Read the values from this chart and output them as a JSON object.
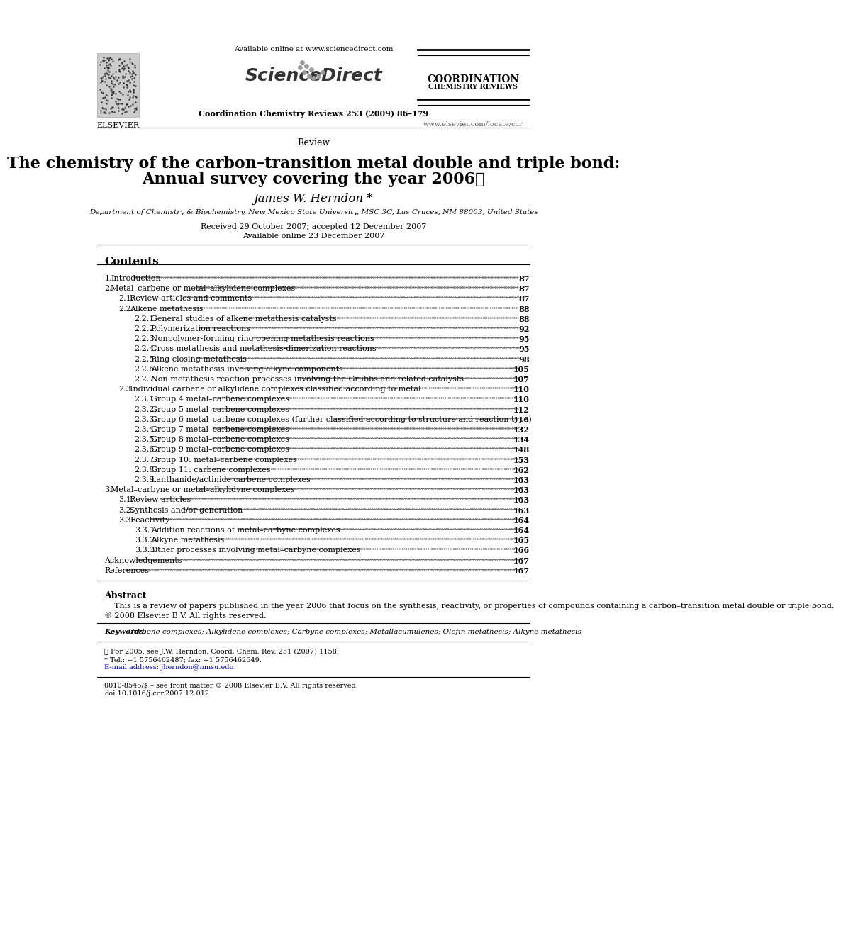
{
  "bg_color": "#ffffff",
  "header": {
    "available_online": "Available online at www.sciencedirect.com",
    "journal_ref": "Coordination Chemistry Reviews 253 (2009) 86–179",
    "coord_chem_line1": "COORDINATION",
    "coord_chem_line2": "CHEMISTRY REVIEWS",
    "elsevier_label": "ELSEVIER",
    "website": "www.elsevier.com/locate/ccr"
  },
  "section_label": "Review",
  "title_line1": "The chemistry of the carbon–transition metal double and triple bond:",
  "title_line2": "Annual survey covering the year 2006★",
  "author": "James W. Herndon *",
  "affiliation": "Department of Chemistry & Biochemistry, New Mexico State University, MSC 3C, Las Cruces, NM 88003, United States",
  "received": "Received 29 October 2007; accepted 12 December 2007",
  "available": "Available online 23 December 2007",
  "contents_title": "Contents",
  "toc": [
    {
      "num": "1.",
      "indent": 0,
      "text": "Introduction",
      "page": "87"
    },
    {
      "num": "2.",
      "indent": 0,
      "text": "Metal–carbene or metal–alkylidene complexes",
      "page": "87"
    },
    {
      "num": "2.1.",
      "indent": 1,
      "text": "Review articles and comments",
      "page": "87"
    },
    {
      "num": "2.2.",
      "indent": 1,
      "text": "Alkene metathesis",
      "page": "88"
    },
    {
      "num": "2.2.1.",
      "indent": 2,
      "text": "General studies of alkene metathesis catalysts",
      "page": "88"
    },
    {
      "num": "2.2.2.",
      "indent": 2,
      "text": "Polymerization reactions",
      "page": "92"
    },
    {
      "num": "2.2.3.",
      "indent": 2,
      "text": "Nonpolymer-forming ring opening metathesis reactions",
      "page": "95"
    },
    {
      "num": "2.2.4.",
      "indent": 2,
      "text": "Cross metathesis and metathesis-dimerization reactions",
      "page": "95"
    },
    {
      "num": "2.2.5.",
      "indent": 2,
      "text": "Ring-closing metathesis",
      "page": "98"
    },
    {
      "num": "2.2.6.",
      "indent": 2,
      "text": "Alkene metathesis involving alkyne components",
      "page": "105"
    },
    {
      "num": "2.2.7.",
      "indent": 2,
      "text": "Non-metathesis reaction processes involving the Grubbs and related catalysts",
      "page": "107"
    },
    {
      "num": "2.3.",
      "indent": 1,
      "text": "Individual carbene or alkylidene complexes classified according to metal",
      "page": "110"
    },
    {
      "num": "2.3.1.",
      "indent": 2,
      "text": "Group 4 metal–carbene complexes",
      "page": "110"
    },
    {
      "num": "2.3.2.",
      "indent": 2,
      "text": "Group 5 metal–carbene complexes",
      "page": "112"
    },
    {
      "num": "2.3.3.",
      "indent": 2,
      "text": "Group 6 metal–carbene complexes (further classified according to structure and reaction type)",
      "page": "116"
    },
    {
      "num": "2.3.4.",
      "indent": 2,
      "text": "Group 7 metal–carbene complexes",
      "page": "132"
    },
    {
      "num": "2.3.5.",
      "indent": 2,
      "text": "Group 8 metal–carbene complexes",
      "page": "134"
    },
    {
      "num": "2.3.6.",
      "indent": 2,
      "text": "Group 9 metal–carbene complexes",
      "page": "148"
    },
    {
      "num": "2.3.7.",
      "indent": 2,
      "text": "Group 10: metal–carbene complexes",
      "page": "153"
    },
    {
      "num": "2.3.8.",
      "indent": 2,
      "text": "Group 11: carbene complexes",
      "page": "162"
    },
    {
      "num": "2.3.9.",
      "indent": 2,
      "text": "Lanthanide/actinide carbene complexes",
      "page": "163"
    },
    {
      "num": "3.",
      "indent": 0,
      "text": "Metal–carbyne or metal–alkylidyne complexes",
      "page": "163"
    },
    {
      "num": "3.1.",
      "indent": 1,
      "text": "Review articles",
      "page": "163"
    },
    {
      "num": "3.2.",
      "indent": 1,
      "text": "Synthesis and/or generation",
      "page": "163"
    },
    {
      "num": "3.3.",
      "indent": 1,
      "text": "Reactivity",
      "page": "164"
    },
    {
      "num": "3.3.1.",
      "indent": 2,
      "text": "Addition reactions of metal–carbyne complexes",
      "page": "164"
    },
    {
      "num": "3.3.2.",
      "indent": 2,
      "text": "Alkyne metathesis",
      "page": "165"
    },
    {
      "num": "3.3.3.",
      "indent": 2,
      "text": "Other processes involving metal–carbyne complexes",
      "page": "166"
    },
    {
      "num": "",
      "indent": 0,
      "text": "Acknowledgements",
      "page": "167"
    },
    {
      "num": "",
      "indent": 0,
      "text": "References",
      "page": "167"
    }
  ],
  "abstract_title": "Abstract",
  "abstract_text": "This is a review of papers published in the year 2006 that focus on the synthesis, reactivity, or properties of compounds containing a carbon–transition metal double or triple bond.",
  "copyright": "© 2008 Elsevier B.V. All rights reserved.",
  "keywords_label": "Keywords:",
  "keywords": "Carbene complexes; Alkylidene complexes; Carbyne complexes; Metallacumulenes; Olefin metathesis; Alkyne metathesis",
  "footnote1": "★ For 2005, see J.W. Herndon, Coord. Chem. Rev. 251 (2007) 1158.",
  "footnote2": "* Tel.: +1 5756462487; fax: +1 5756462649.",
  "footnote3": "E-mail address: jherndon@nmsu.edu.",
  "bottom1": "0010-8545/$ – see front matter © 2008 Elsevier B.V. All rights reserved.",
  "bottom2": "doi:10.1016/j.ccr.2007.12.012"
}
